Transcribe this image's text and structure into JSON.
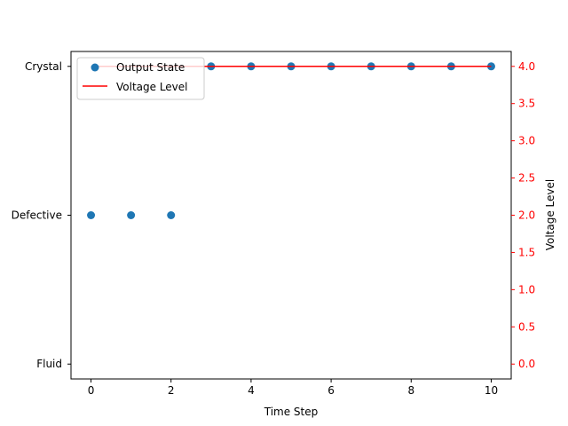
{
  "chart_data": {
    "type": "scatter",
    "title": "",
    "x": [
      0,
      1,
      2,
      3,
      4,
      5,
      6,
      7,
      8,
      9,
      10
    ],
    "xlabel": "Time Step",
    "xlim": [
      -0.5,
      10.5
    ],
    "xticks": [
      0,
      2,
      4,
      6,
      8,
      10
    ],
    "y_left": {
      "categories": [
        "Fluid",
        "Defective",
        "Crystal"
      ],
      "ylim": [
        -0.1,
        2.1
      ]
    },
    "y_right": {
      "label": "Voltage Level",
      "ylim": [
        -0.2,
        4.2
      ],
      "ticks": [
        0.0,
        0.5,
        1.0,
        1.5,
        2.0,
        2.5,
        3.0,
        3.5,
        4.0
      ],
      "color": "#ff0000"
    },
    "series": [
      {
        "name": "Output State",
        "kind": "scatter",
        "axis": "left",
        "color": "#1f77b4",
        "values": [
          "Defective",
          "Defective",
          "Defective",
          "Crystal",
          "Crystal",
          "Crystal",
          "Crystal",
          "Crystal",
          "Crystal",
          "Crystal",
          "Crystal"
        ]
      },
      {
        "name": "Voltage Level",
        "kind": "line",
        "axis": "right",
        "color": "#ff0000",
        "values": [
          4,
          4,
          4,
          4,
          4,
          4,
          4,
          4,
          4,
          4,
          4
        ]
      }
    ],
    "legend_position": "top-left",
    "grid": false
  }
}
